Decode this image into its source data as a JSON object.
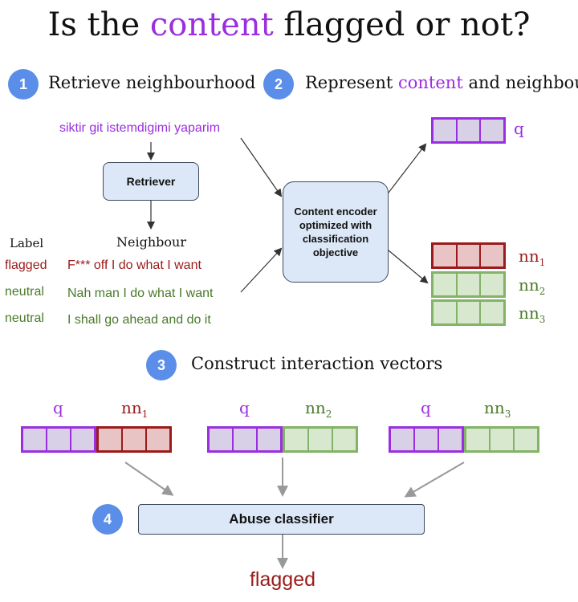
{
  "title": {
    "part1": "Is the ",
    "accent": "content",
    "part2": " flagged or not?"
  },
  "steps": [
    {
      "number": "1",
      "label": "Retrieve neighbourhood"
    },
    {
      "number": "2",
      "label_pre": "Represent ",
      "label_accent": "content",
      "label_post": " and neighbours"
    },
    {
      "number": "3",
      "label": "Construct interaction vectors"
    },
    {
      "number": "4"
    }
  ],
  "query_text": "siktir git istemdigimi yaparim",
  "retriever_label": "Retriever",
  "table": {
    "label_header": "Label",
    "neighbour_header": "Neighbour",
    "rows": [
      {
        "label": "flagged",
        "text": "F*** off I do what I want",
        "color": "#9b1a1a"
      },
      {
        "label": "neutral",
        "text": "Nah man I do what I want",
        "color": "#4a7a2a"
      },
      {
        "label": "neutral",
        "text": "I shall go ahead and do it",
        "color": "#4a7a2a"
      }
    ]
  },
  "encoder_label": "Content encoder optimized with classification objective",
  "vectors": {
    "q": "q",
    "nn": "nn",
    "nn_subs": [
      "1",
      "2",
      "3"
    ]
  },
  "classifier_label": "Abuse classifier",
  "result": "flagged",
  "colors": {
    "accent": "#9a2ee0",
    "flagged": "#9b1a1a",
    "neutral": "#4a7a2a",
    "badge": "#5a8ee8",
    "box_fill": "#dce8f7"
  }
}
